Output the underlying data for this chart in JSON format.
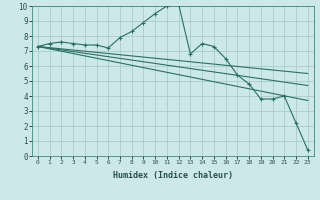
{
  "xlabel": "Humidex (Indice chaleur)",
  "bg_color": "#cce8e8",
  "grid_color": "#aacccc",
  "line_color": "#2a7060",
  "xlim": [
    -0.5,
    23.5
  ],
  "ylim": [
    0,
    10
  ],
  "xticks": [
    0,
    1,
    2,
    3,
    4,
    5,
    6,
    7,
    8,
    9,
    10,
    11,
    12,
    13,
    14,
    15,
    16,
    17,
    18,
    19,
    20,
    21,
    22,
    23
  ],
  "yticks": [
    0,
    1,
    2,
    3,
    4,
    5,
    6,
    7,
    8,
    9,
    10
  ],
  "series": [
    {
      "x": [
        0,
        1,
        2,
        3,
        4,
        5,
        6,
        7,
        8,
        9,
        10,
        11,
        12,
        13,
        14,
        15,
        16,
        17,
        18,
        19,
        20,
        21,
        22,
        23
      ],
      "y": [
        7.3,
        7.5,
        7.6,
        7.5,
        7.4,
        7.4,
        7.2,
        7.9,
        8.3,
        8.9,
        9.5,
        10.0,
        10.1,
        6.8,
        7.5,
        7.3,
        6.5,
        5.4,
        4.8,
        3.8,
        3.8,
        4.0,
        2.2,
        0.4
      ],
      "marker": "+"
    },
    {
      "x": [
        0,
        23
      ],
      "y": [
        7.3,
        5.5
      ],
      "marker": null
    },
    {
      "x": [
        0,
        23
      ],
      "y": [
        7.3,
        4.7
      ],
      "marker": null
    },
    {
      "x": [
        0,
        23
      ],
      "y": [
        7.3,
        3.7
      ],
      "marker": null
    }
  ]
}
